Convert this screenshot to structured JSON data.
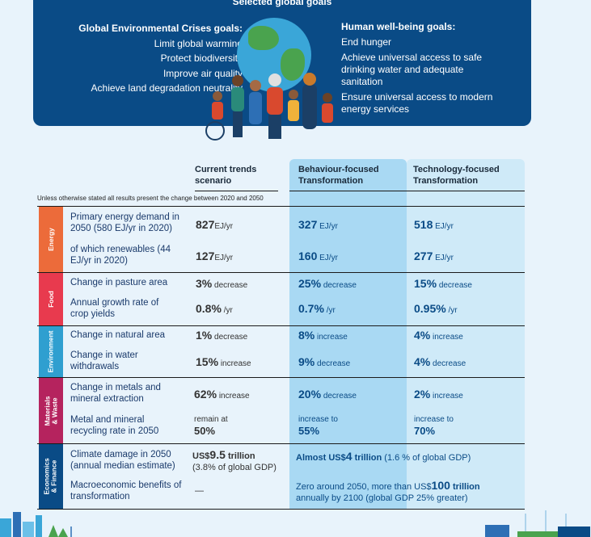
{
  "banner": {
    "title": "Selected global goals",
    "left_header": "Global Environmental Crises goals:",
    "left_items": [
      "Limit global warming",
      "Protect biodiversity",
      "Improve air quality",
      "Achieve land degradation neutrality"
    ],
    "right_header": "Human well-being goals:",
    "right_items": [
      "End hunger",
      "Achieve universal access to safe drinking water and adequate sanitation",
      "Ensure universal access to modern energy services"
    ]
  },
  "columns": {
    "current": "Current trends scenario",
    "behaviour": "Behaviour-focused Transformation",
    "technology": "Technology-focused Transformation"
  },
  "note": "Unless otherwise stated all results present the change between 2020 and 2050",
  "categories": {
    "energy": "Energy",
    "food": "Food",
    "environment": "Environment",
    "materials": "Materials & Waste",
    "economics": "Economics & Finance"
  },
  "rows": {
    "r1": {
      "label": "Primary energy demand in 2050 (580 EJ/yr in 2020)",
      "cur_num": "827",
      "cur_unit": "EJ/yr",
      "beh_num": "327",
      "beh_unit": "EJ/yr",
      "tech_num": "518",
      "tech_unit": "EJ/yr"
    },
    "r2": {
      "label": "of which renewables (44 EJ/yr in 2020)",
      "cur_num": "127",
      "cur_unit": "EJ/yr",
      "beh_num": "160",
      "beh_unit": "EJ/yr",
      "tech_num": "277",
      "tech_unit": "EJ/yr"
    },
    "r3": {
      "label": "Change in pasture area",
      "cur_num": "3%",
      "cur_unit": "decrease",
      "beh_num": "25%",
      "beh_unit": "decrease",
      "tech_num": "15%",
      "tech_unit": "decrease"
    },
    "r4": {
      "label": "Annual growth rate of crop yields",
      "cur_num": "0.8%",
      "cur_unit": "/yr",
      "beh_num": "0.7%",
      "beh_unit": "/yr",
      "tech_num": "0.95%",
      "tech_unit": "/yr"
    },
    "r5": {
      "label": "Change in natural area",
      "cur_num": "1%",
      "cur_unit": "decrease",
      "beh_num": "8%",
      "beh_unit": "increase",
      "tech_num": "4%",
      "tech_unit": "increase"
    },
    "r6": {
      "label": "Change in water withdrawals",
      "cur_num": "15%",
      "cur_unit": "increase",
      "beh_num": "9%",
      "beh_unit": "decrease",
      "tech_num": "4%",
      "tech_unit": "decrease"
    },
    "r7": {
      "label": "Change in metals and mineral extraction",
      "cur_num": "62%",
      "cur_unit": "increase",
      "beh_num": "20%",
      "beh_unit": "decrease",
      "tech_num": "2%",
      "tech_unit": "increase"
    },
    "r8": {
      "label": "Metal and mineral recycling rate in 2050",
      "cur_pre": "remain at",
      "cur_num": "50%",
      "beh_pre": "increase to",
      "beh_num": "55%",
      "tech_pre": "increase to",
      "tech_num": "70%"
    },
    "r9": {
      "label": "Climate damage in 2050 (annual median estimate)",
      "cur_pre": "US$",
      "cur_num": "9.5",
      "cur_post": "trillion",
      "cur_sub": "(3.8% of global GDP)",
      "trans_pre": "Almost US$",
      "trans_num": "4",
      "trans_post": "trillion",
      "trans_sub": "(1.6 % of global GDP)"
    },
    "r10": {
      "label": "Macroeconomic benefits of transformation",
      "cur": "—",
      "trans_pre": "Zero around 2050, more than US$",
      "trans_num": "100",
      "trans_post": "trillion",
      "trans_sub": "annually by 2100 (global GDP 25% greater)"
    }
  },
  "colors": {
    "banner": "#0a4b86",
    "energy": "#ec6b3a",
    "food": "#e83a4e",
    "environment": "#2f9fd0",
    "materials": "#b5235e",
    "economics": "#0a4b86"
  }
}
